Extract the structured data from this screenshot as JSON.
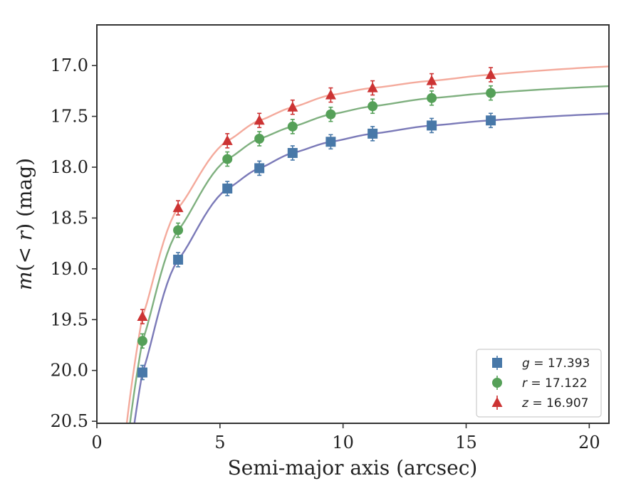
{
  "chart_data": {
    "type": "scatter",
    "title": "",
    "xlabel": "Semi-major axis (arcsec)",
    "ylabel": "m(< r) (mag)",
    "xlim": [
      0,
      20.8
    ],
    "ylim": [
      20.52,
      16.6
    ],
    "y_inverted": true,
    "grid": false,
    "legend_position": "lower-right",
    "x_ticks": [
      0,
      5,
      10,
      15,
      20
    ],
    "x_tick_labels": [
      "0",
      "5",
      "10",
      "15",
      "20"
    ],
    "y_ticks": [
      17.0,
      17.5,
      18.0,
      18.5,
      19.0,
      19.5,
      20.0,
      20.5
    ],
    "y_tick_labels": [
      "17.0",
      "17.5",
      "18.0",
      "18.5",
      "19.0",
      "19.5",
      "20.0",
      "20.5"
    ],
    "series": [
      {
        "name": "g",
        "legend_label": "g = 17.393",
        "marker": "square",
        "marker_color": "#4878a8",
        "curve_color": "#7b7ab8",
        "x": [
          1.85,
          3.3,
          5.3,
          6.6,
          7.95,
          9.5,
          11.2,
          13.6,
          16.0
        ],
        "y": [
          20.02,
          18.91,
          18.21,
          18.01,
          17.86,
          17.75,
          17.67,
          17.59,
          17.54
        ],
        "fit_asymptote": 17.393
      },
      {
        "name": "r",
        "legend_label": "r = 17.122",
        "marker": "circle",
        "marker_color": "#55a058",
        "curve_color": "#7fb07f",
        "x": [
          1.85,
          3.3,
          5.3,
          6.6,
          7.95,
          9.5,
          11.2,
          13.6,
          16.0
        ],
        "y": [
          19.71,
          18.62,
          17.92,
          17.72,
          17.6,
          17.48,
          17.4,
          17.32,
          17.27
        ],
        "fit_asymptote": 17.122
      },
      {
        "name": "z",
        "legend_label": "z = 16.907",
        "marker": "triangle",
        "marker_color": "#cc3333",
        "curve_color": "#f4aa9c",
        "x": [
          1.85,
          3.3,
          5.3,
          6.6,
          7.95,
          9.5,
          11.2,
          13.6,
          16.0
        ],
        "y": [
          19.47,
          18.4,
          17.74,
          17.54,
          17.41,
          17.29,
          17.22,
          17.15,
          17.09
        ],
        "fit_asymptote": 16.907
      }
    ]
  }
}
